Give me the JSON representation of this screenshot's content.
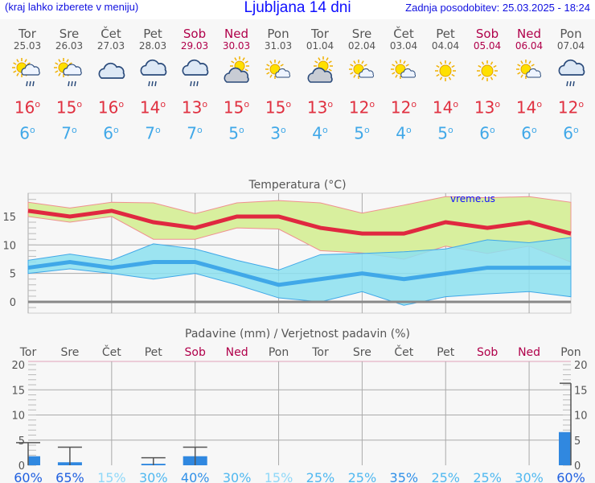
{
  "header": {
    "hint": "(kraj lahko izberete v meniju)",
    "title": "Ljubljana 14 dni",
    "updated": "Zadnja posodobitev: 25.03.2025 - 18:24"
  },
  "days": [
    {
      "name": "Tor",
      "date": "25.03",
      "weekend": false,
      "icon": "sun-cloud-rain",
      "max": "16",
      "min": "6"
    },
    {
      "name": "Sre",
      "date": "26.03",
      "weekend": false,
      "icon": "sun-cloud-rain",
      "max": "15",
      "min": "7"
    },
    {
      "name": "Čet",
      "date": "27.03",
      "weekend": false,
      "icon": "cloudy",
      "max": "16",
      "min": "6"
    },
    {
      "name": "Pet",
      "date": "28.03",
      "weekend": false,
      "icon": "cloud-rain",
      "max": "14",
      "min": "7"
    },
    {
      "name": "Sob",
      "date": "29.03",
      "weekend": true,
      "icon": "cloud-rain",
      "max": "13",
      "min": "7"
    },
    {
      "name": "Ned",
      "date": "30.03",
      "weekend": true,
      "icon": "cloud-sun",
      "max": "15",
      "min": "5"
    },
    {
      "name": "Pon",
      "date": "31.03",
      "weekend": false,
      "icon": "sun-small-cloud",
      "max": "15",
      "min": "3"
    },
    {
      "name": "Tor",
      "date": "01.04",
      "weekend": false,
      "icon": "cloud-sun",
      "max": "13",
      "min": "4"
    },
    {
      "name": "Sre",
      "date": "02.04",
      "weekend": false,
      "icon": "sun-small-cloud",
      "max": "12",
      "min": "5"
    },
    {
      "name": "Čet",
      "date": "03.04",
      "weekend": false,
      "icon": "sun-small-cloud",
      "max": "12",
      "min": "4"
    },
    {
      "name": "Pet",
      "date": "04.04",
      "weekend": false,
      "icon": "sun",
      "max": "14",
      "min": "5"
    },
    {
      "name": "Sob",
      "date": "05.04",
      "weekend": true,
      "icon": "sun",
      "max": "13",
      "min": "6"
    },
    {
      "name": "Ned",
      "date": "06.04",
      "weekend": true,
      "icon": "sun-small-cloud",
      "max": "14",
      "min": "6"
    },
    {
      "name": "Pon",
      "date": "07.04",
      "weekend": false,
      "icon": "cloud-rain",
      "max": "12",
      "min": "6"
    }
  ],
  "chart_data": [
    {
      "type": "area",
      "title": "Temperatura (°C)",
      "watermark": "vreme.us",
      "ylim": [
        -2,
        19
      ],
      "yticks": [
        "0",
        "5",
        "10",
        "15"
      ],
      "series": [
        {
          "name": "max",
          "color": "#e02840",
          "values": [
            16,
            15,
            16,
            14,
            13,
            15,
            15,
            13,
            12,
            12,
            14,
            13,
            14,
            12
          ]
        },
        {
          "name": "max_upper",
          "values": [
            17.5,
            16.5,
            17.5,
            17.4,
            15.5,
            17.4,
            17.8,
            17.4,
            15.6,
            17,
            18.5,
            18.3,
            18.5,
            17.5
          ]
        },
        {
          "name": "max_lower",
          "values": [
            15,
            14,
            15,
            11,
            11,
            13,
            12.8,
            9,
            8.6,
            7.5,
            9.8,
            8.5,
            9.8,
            7
          ]
        },
        {
          "name": "min",
          "color": "#40a8e8",
          "values": [
            6,
            7,
            6,
            7,
            7,
            5,
            3,
            4,
            5,
            4,
            5,
            6,
            6,
            6
          ]
        },
        {
          "name": "min_upper",
          "values": [
            7.3,
            8.4,
            7.3,
            10.2,
            9.3,
            7.3,
            5.6,
            8.3,
            8.5,
            8.8,
            9.3,
            10.9,
            10.4,
            11.3
          ]
        },
        {
          "name": "min_lower",
          "values": [
            5,
            5.8,
            5,
            4,
            5,
            3,
            0.7,
            0,
            1.8,
            -0.6,
            0.9,
            1.4,
            1.8,
            0.9
          ]
        }
      ]
    },
    {
      "type": "bar",
      "title": "Padavine (mm) / Verjetnost padavin (%)",
      "ylim": [
        0,
        20
      ],
      "yticks": [
        "0",
        "5",
        "10",
        "15",
        "20"
      ],
      "categories": [
        "Tor",
        "Sre",
        "Čet",
        "Pet",
        "Sob",
        "Ned",
        "Pon",
        "Tor",
        "Sre",
        "Čet",
        "Pet",
        "Sob",
        "Ned",
        "Pon"
      ],
      "values": [
        1.8,
        0.6,
        0,
        0.3,
        1.8,
        0,
        0,
        0,
        0,
        0,
        0,
        0,
        0,
        6.6
      ],
      "error_max": [
        4.5,
        3.6,
        null,
        1.5,
        3.6,
        null,
        null,
        null,
        null,
        null,
        null,
        null,
        null,
        16.3
      ],
      "probability": [
        "60%",
        "65%",
        "15%",
        "30%",
        "40%",
        "30%",
        "15%",
        "25%",
        "25%",
        "35%",
        "25%",
        "25%",
        "30%",
        "60%"
      ]
    }
  ]
}
